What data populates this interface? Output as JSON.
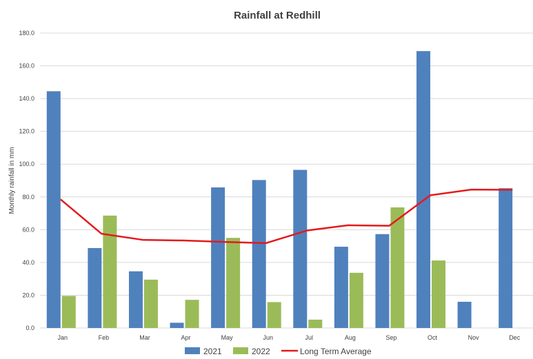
{
  "chart_data": {
    "type": "bar",
    "title": "Rainfall at Redhill",
    "xlabel": "",
    "ylabel": "Monthly rainfall in mm",
    "ylim": [
      0,
      180
    ],
    "yticks": [
      "0.0",
      "20.0",
      "40.0",
      "60.0",
      "80.0",
      "100.0",
      "120.0",
      "140.0",
      "160.0",
      "180.0"
    ],
    "categories": [
      "Jan",
      "Feb",
      "Mar",
      "Apr",
      "May",
      "Jun",
      "Jul",
      "Aug",
      "Sep",
      "Oct",
      "Nov",
      "Dec"
    ],
    "series": [
      {
        "name": "2021",
        "type": "bar",
        "color": "#4f81bd",
        "values": [
          144.5,
          48.8,
          34.6,
          3.2,
          85.8,
          90.3,
          96.5,
          49.6,
          57.3,
          169.0,
          16.0,
          85.3
        ]
      },
      {
        "name": "2022",
        "type": "bar",
        "color": "#9bbb59",
        "values": [
          19.6,
          68.6,
          29.5,
          17.2,
          55.0,
          15.8,
          5.1,
          33.7,
          73.6,
          41.2,
          null,
          null
        ]
      },
      {
        "name": "Long Term Average",
        "type": "line",
        "color": "#e31a1c",
        "values": [
          78.5,
          57.5,
          53.8,
          53.4,
          52.5,
          51.8,
          59.5,
          62.7,
          62.4,
          81.0,
          84.5,
          84.3
        ]
      }
    ],
    "grid": true,
    "legend": "bottom"
  }
}
